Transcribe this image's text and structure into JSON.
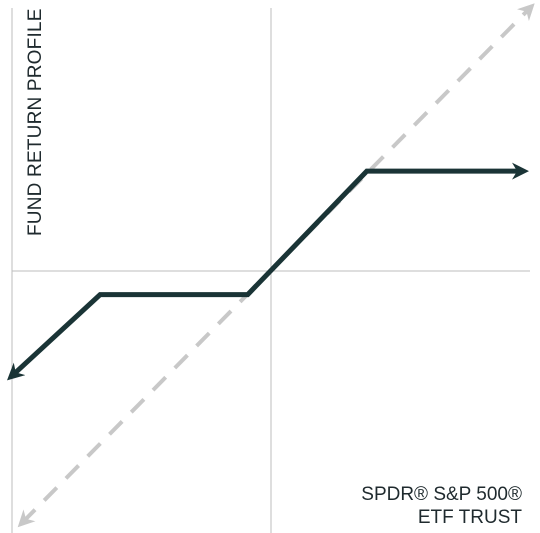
{
  "chart_data": {
    "type": "line",
    "title": "",
    "xlabel": "",
    "ylabel": "FUND RETURN PROFILE",
    "xlim": [
      -1,
      1
    ],
    "ylim": [
      -1,
      1
    ],
    "grid": false,
    "axes": {
      "x_zero_line": true,
      "y_zero_line": true
    },
    "series": [
      {
        "name": "SPDR® S&P 500® ETF TRUST",
        "name_lines": [
          "SPDR® S&P 500®",
          "ETF TRUST"
        ],
        "style": "dashed",
        "color": "#c8c8c8",
        "arrows": "both",
        "points": [
          [
            -0.96,
            -0.96
          ],
          [
            1.0,
            1.0
          ]
        ]
      },
      {
        "name": "",
        "style": "solid",
        "color": "#1a3436",
        "arrows": "both",
        "points": [
          [
            -1.0,
            -0.4
          ],
          [
            -0.66,
            -0.09
          ],
          [
            -0.09,
            -0.09
          ],
          [
            0.37,
            0.38
          ],
          [
            0.97,
            0.38
          ]
        ]
      }
    ],
    "colors": {
      "axis": "#bdbdbd",
      "text": "#1f2a2e"
    }
  }
}
